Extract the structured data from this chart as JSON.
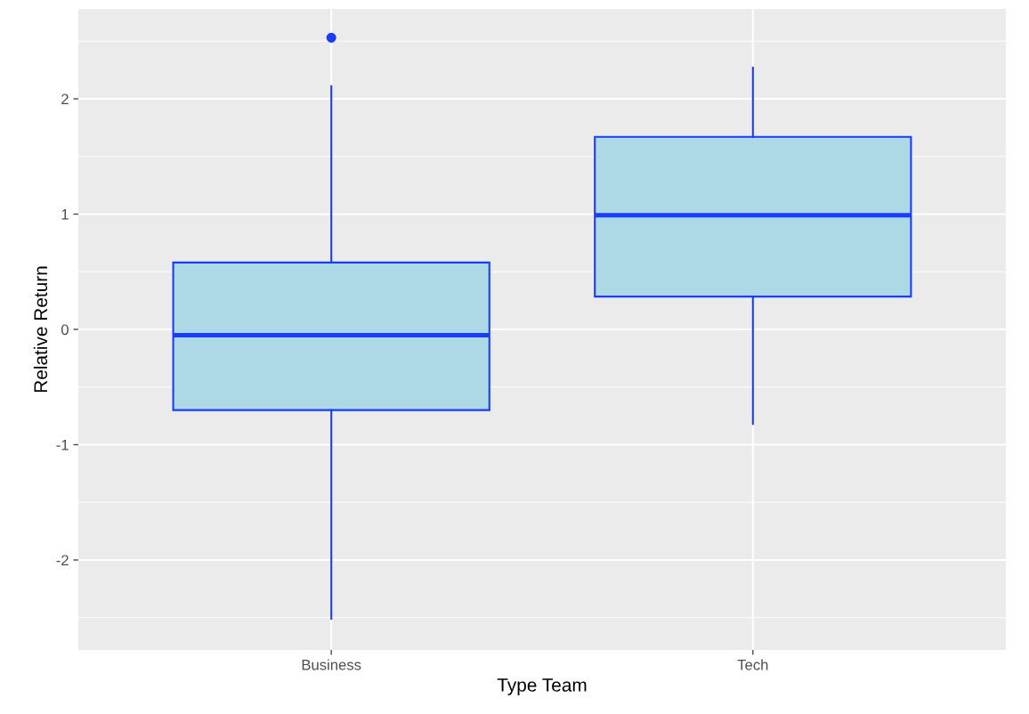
{
  "chart_data": {
    "type": "box",
    "xlabel": "Type Team",
    "ylabel": "Relative Return",
    "categories": [
      "Business",
      "Tech"
    ],
    "series": [
      {
        "color": "#1a3cff",
        "colors": [
          "#add8e6",
          "#add8e6"
        ],
        "boxes": [
          {
            "low": -2.51,
            "q1": -0.7,
            "median": -0.05,
            "q3": 0.58,
            "high": 2.11,
            "outliers": [
              2.53
            ]
          },
          {
            "low": -0.82,
            "q1": 0.285,
            "median": 0.99,
            "q3": 1.67,
            "high": 2.27
          }
        ]
      }
    ],
    "ylim": [
      -2.78,
      2.78
    ],
    "yticks": [
      -2,
      -1,
      0,
      1,
      2
    ],
    "grid": true,
    "legend": false
  }
}
